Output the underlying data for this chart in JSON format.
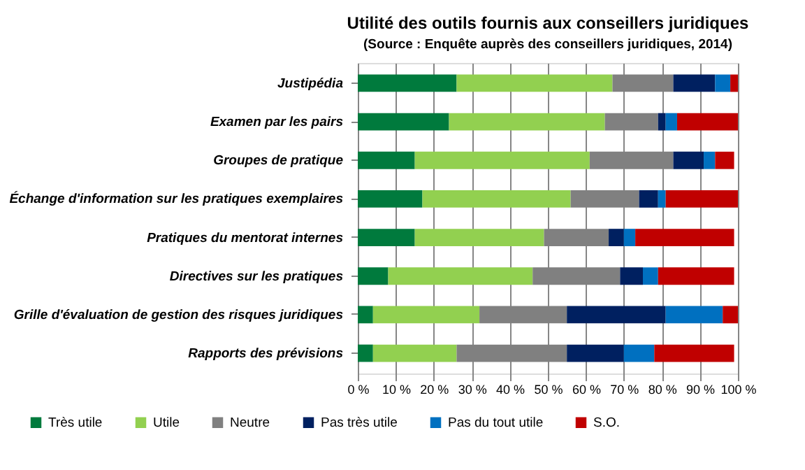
{
  "chart_data": {
    "type": "bar",
    "orientation": "horizontal",
    "stacked": true,
    "title": "Utilité des outils fournis aux conseillers juridiques",
    "subtitle": "(Source : Enquête auprès des conseillers juridiques,  2014)",
    "categories": [
      "Justipédia",
      "Examen par les pairs",
      "Groupes de pratique",
      "Échange d'information sur les pratiques exemplaires",
      "Pratiques du mentorat internes",
      "Directives sur les pratiques",
      "Grille d'évaluation de gestion des risques juridiques",
      "Rapports des prévisions"
    ],
    "series": [
      {
        "name": "Très utile",
        "color": "#007a3d",
        "values": [
          26,
          24,
          15,
          17,
          15,
          8,
          4,
          4
        ]
      },
      {
        "name": "Utile",
        "color": "#92d050",
        "values": [
          41,
          41,
          46,
          39,
          34,
          38,
          28,
          22
        ]
      },
      {
        "name": "Neutre",
        "color": "#808080",
        "values": [
          16,
          14,
          22,
          18,
          17,
          23,
          23,
          29
        ]
      },
      {
        "name": "Pas très utile",
        "color": "#002060",
        "values": [
          11,
          2,
          8,
          5,
          4,
          6,
          26,
          15
        ]
      },
      {
        "name": "Pas du tout utile",
        "color": "#0070c0",
        "values": [
          4,
          3,
          3,
          2,
          3,
          4,
          15,
          8
        ]
      },
      {
        "name": "S.O.",
        "color": "#c00000",
        "values": [
          2,
          16,
          5,
          19,
          26,
          20,
          4,
          21
        ]
      }
    ],
    "xlim": [
      0,
      100
    ],
    "xticks": [
      {
        "value": 0,
        "label": "0 %"
      },
      {
        "value": 10,
        "label": "10 %"
      },
      {
        "value": 20,
        "label": "20 %"
      },
      {
        "value": 30,
        "label": "30 %"
      },
      {
        "value": 40,
        "label": "40 %"
      },
      {
        "value": 50,
        "label": "50 %"
      },
      {
        "value": 60,
        "label": "60 %"
      },
      {
        "value": 70,
        "label": "70 %"
      },
      {
        "value": 80,
        "label": "80 %"
      },
      {
        "value": 90,
        "label": "90 %"
      },
      {
        "value": 100,
        "label": "100 %"
      }
    ],
    "grid": "x",
    "legend": "bottom"
  }
}
